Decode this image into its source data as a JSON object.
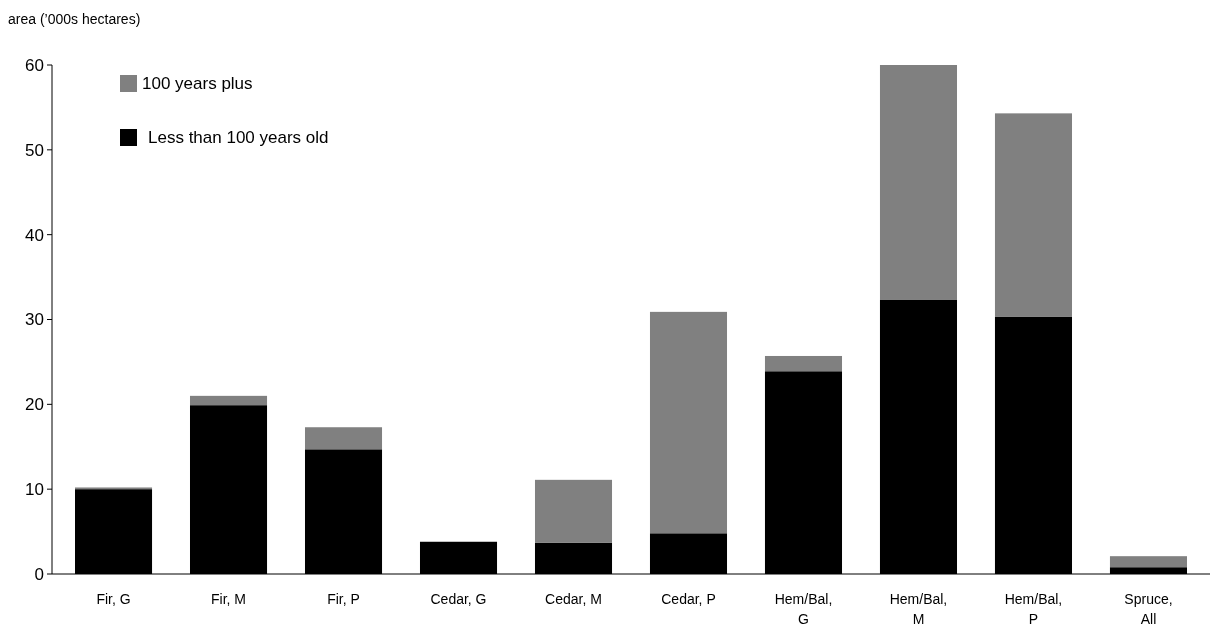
{
  "chart_data": {
    "type": "bar",
    "stacked": true,
    "ylabel": "area (’000s hectares)",
    "categories": [
      "Fir,  G",
      "Fir,  M",
      "Fir,  P",
      "Cedar, G",
      "Cedar, M",
      "Cedar, P",
      "Hem/Bal, G",
      "Hem/Bal, M",
      "Hem/Bal, P",
      "Spruce, All"
    ],
    "series": [
      {
        "name": "Less than 100 years old",
        "color": "#000000",
        "values": [
          10.0,
          19.9,
          14.7,
          3.8,
          3.7,
          4.8,
          23.9,
          32.3,
          30.3,
          0.8
        ]
      },
      {
        "name": "100 years plus",
        "color": "#808080",
        "values": [
          0.2,
          1.1,
          2.6,
          0,
          7.4,
          26.1,
          1.8,
          27.7,
          24.0,
          1.3
        ]
      }
    ],
    "ylim": [
      0,
      60
    ],
    "yticks": [
      0,
      10,
      20,
      30,
      40,
      50,
      60
    ],
    "grid": false,
    "legend": "top left"
  }
}
